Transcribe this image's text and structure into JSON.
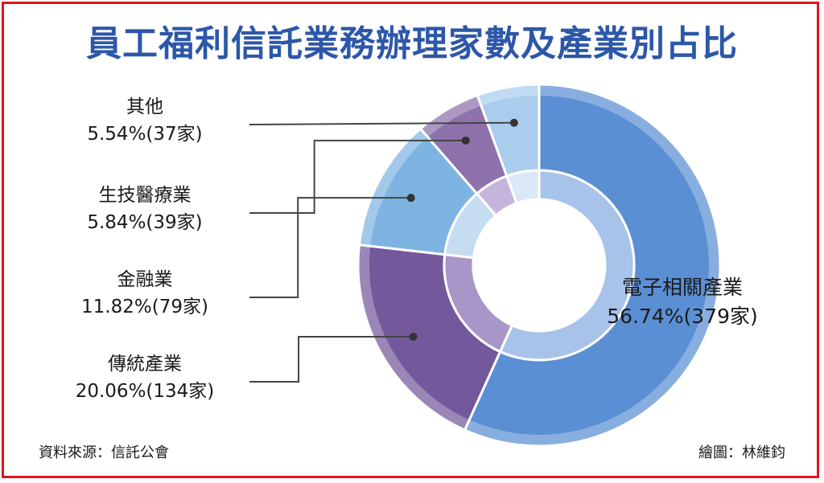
{
  "title": "員工福利信託業務辦理家數及產業別占比",
  "source": "資料來源：信託公會",
  "credit": "繪圖：林維鈞",
  "chart_data": {
    "type": "pie",
    "style": "donut",
    "title": "員工福利信託業務辦理家數及產業別占比",
    "slices": [
      {
        "name": "電子相關產業",
        "value_label": "56.74%(379家)",
        "percent": 56.74,
        "count": 379,
        "color": "#5b8fd4",
        "inner_color": "#a7c3ea"
      },
      {
        "name": "傳統產業",
        "value_label": "20.06%(134家)",
        "percent": 20.06,
        "count": 134,
        "color": "#74589c",
        "inner_color": "#a996c8"
      },
      {
        "name": "金融業",
        "value_label": "11.82%(79家)",
        "percent": 11.82,
        "count": 79,
        "color": "#7eb4e2",
        "inner_color": "#c6dcf0"
      },
      {
        "name": "生技醫療業",
        "value_label": "5.84%(39家)",
        "percent": 5.84,
        "count": 39,
        "color": "#8d72ac",
        "inner_color": "#c5b5dc"
      },
      {
        "name": "其他",
        "value_label": "5.54%(37家)",
        "percent": 5.54,
        "count": 37,
        "color": "#aacdee",
        "inner_color": "#d8e8f7"
      }
    ]
  }
}
